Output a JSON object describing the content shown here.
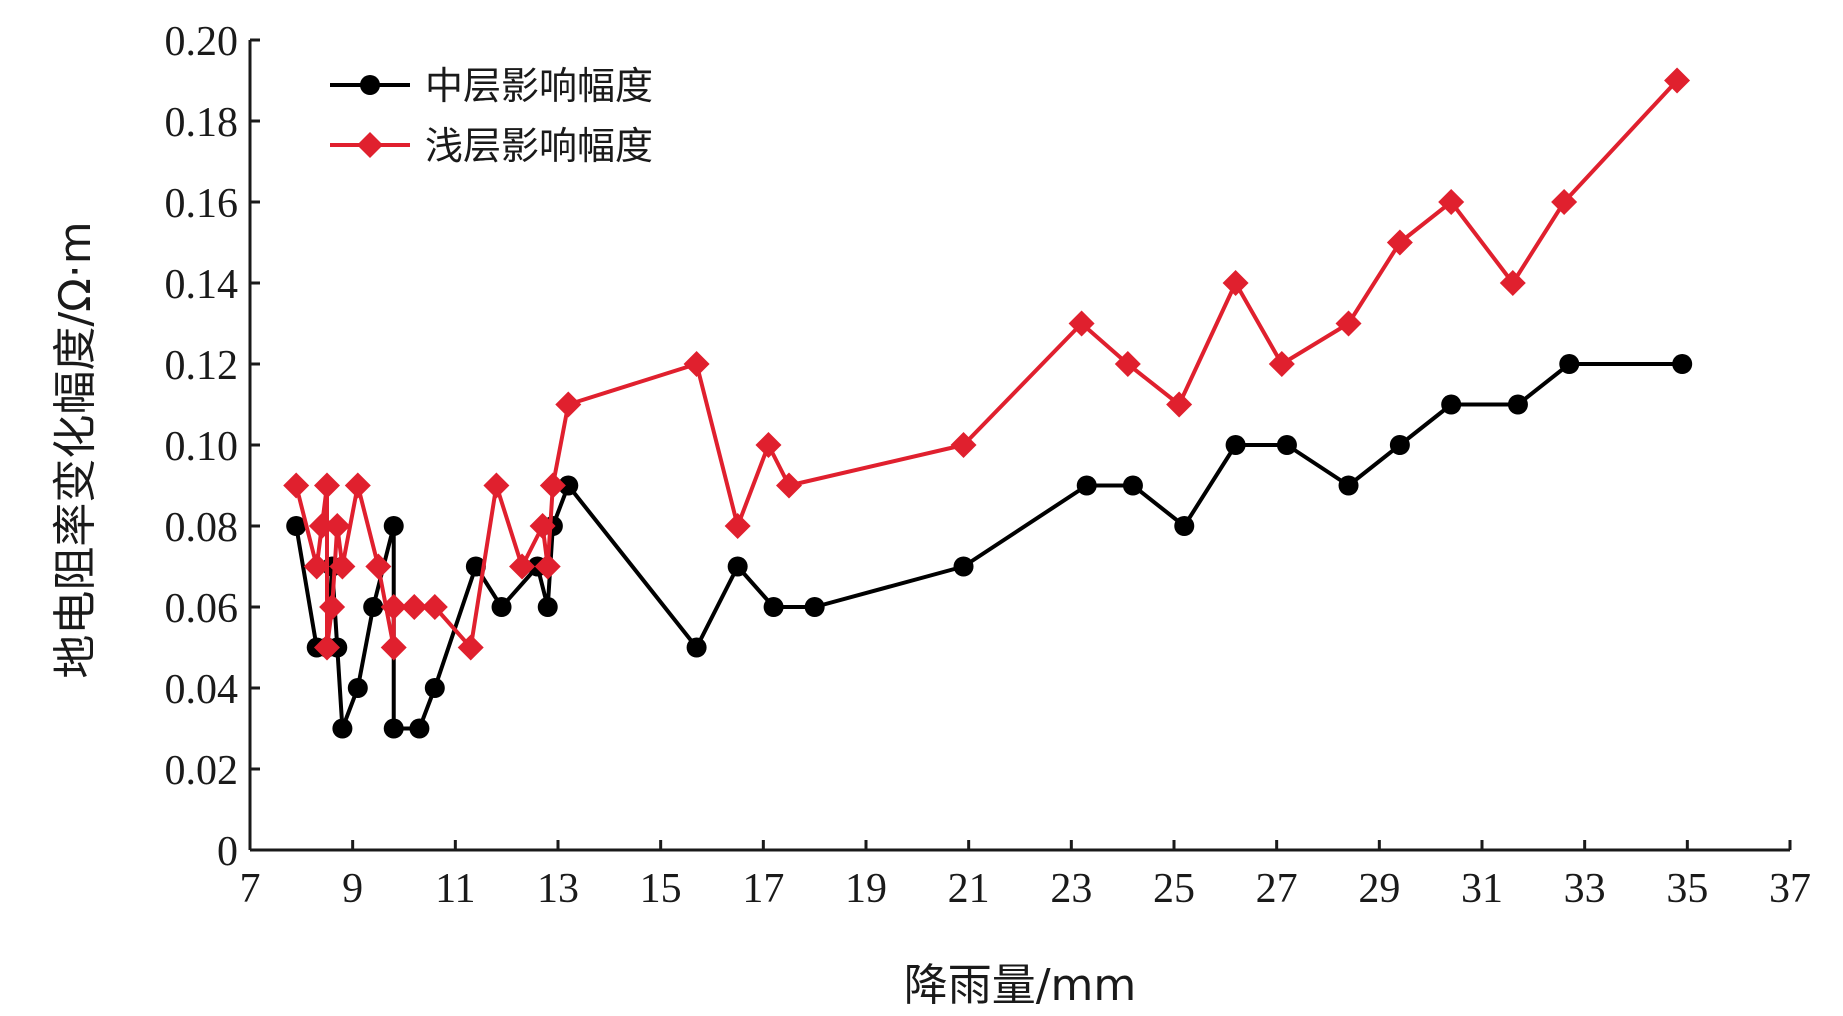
{
  "chart_data": {
    "type": "line",
    "title": "",
    "xlabel": "降雨量/mm",
    "ylabel": "地电阻率变化幅度/Ω·m",
    "xlim": [
      7,
      37
    ],
    "ylim": [
      0,
      0.2
    ],
    "x_ticks": [
      7,
      9,
      11,
      13,
      15,
      17,
      19,
      21,
      23,
      25,
      27,
      29,
      31,
      33,
      35,
      37
    ],
    "x_tick_labels": [
      "7",
      "9",
      "11",
      "13",
      "15",
      "17",
      "19",
      "21",
      "23",
      "25",
      "27",
      "29",
      "31",
      "33",
      "35",
      "37"
    ],
    "y_ticks": [
      0,
      0.02,
      0.04,
      0.06,
      0.08,
      0.1,
      0.12,
      0.14,
      0.16,
      0.18,
      0.2
    ],
    "y_tick_labels": [
      "0",
      "0.02",
      "0.04",
      "0.06",
      "0.08",
      "0.10",
      "0.12",
      "0.14",
      "0.16",
      "0.18",
      "0.20"
    ],
    "grid": false,
    "legend_position": "top-left",
    "series": [
      {
        "name": "中层影响幅度",
        "color": "#000000",
        "marker": "circle",
        "points": [
          [
            7.9,
            0.08
          ],
          [
            8.3,
            0.05
          ],
          [
            8.5,
            0.05
          ],
          [
            8.6,
            0.07
          ],
          [
            8.7,
            0.05
          ],
          [
            8.8,
            0.03
          ],
          [
            9.1,
            0.04
          ],
          [
            9.4,
            0.06
          ],
          [
            9.8,
            0.08
          ],
          [
            9.8,
            0.03
          ],
          [
            10.3,
            0.03
          ],
          [
            10.6,
            0.04
          ],
          [
            11.4,
            0.07
          ],
          [
            11.9,
            0.06
          ],
          [
            12.6,
            0.07
          ],
          [
            12.8,
            0.06
          ],
          [
            12.9,
            0.08
          ],
          [
            13.2,
            0.09
          ],
          [
            15.7,
            0.05
          ],
          [
            16.5,
            0.07
          ],
          [
            17.2,
            0.06
          ],
          [
            18.0,
            0.06
          ],
          [
            20.9,
            0.07
          ],
          [
            23.3,
            0.09
          ],
          [
            24.2,
            0.09
          ],
          [
            25.2,
            0.08
          ],
          [
            26.2,
            0.1
          ],
          [
            27.2,
            0.1
          ],
          [
            28.4,
            0.09
          ],
          [
            29.4,
            0.1
          ],
          [
            30.4,
            0.11
          ],
          [
            31.7,
            0.11
          ],
          [
            32.7,
            0.12
          ],
          [
            34.9,
            0.12
          ]
        ]
      },
      {
        "name": "浅层影响幅度",
        "color": "#e0202e",
        "marker": "diamond",
        "points": [
          [
            7.9,
            0.09
          ],
          [
            8.3,
            0.07
          ],
          [
            8.4,
            0.08
          ],
          [
            8.5,
            0.09
          ],
          [
            8.5,
            0.05
          ],
          [
            8.6,
            0.06
          ],
          [
            8.7,
            0.08
          ],
          [
            8.8,
            0.07
          ],
          [
            9.1,
            0.09
          ],
          [
            9.5,
            0.07
          ],
          [
            9.8,
            0.05
          ],
          [
            9.8,
            0.06
          ],
          [
            10.2,
            0.06
          ],
          [
            10.6,
            0.06
          ],
          [
            11.3,
            0.05
          ],
          [
            11.8,
            0.09
          ],
          [
            12.3,
            0.07
          ],
          [
            12.7,
            0.08
          ],
          [
            12.8,
            0.07
          ],
          [
            12.9,
            0.09
          ],
          [
            13.2,
            0.11
          ],
          [
            15.7,
            0.12
          ],
          [
            16.5,
            0.08
          ],
          [
            17.1,
            0.1
          ],
          [
            17.5,
            0.09
          ],
          [
            20.9,
            0.1
          ],
          [
            23.2,
            0.13
          ],
          [
            24.1,
            0.12
          ],
          [
            25.1,
            0.11
          ],
          [
            26.2,
            0.14
          ],
          [
            27.1,
            0.12
          ],
          [
            28.4,
            0.13
          ],
          [
            29.4,
            0.15
          ],
          [
            30.4,
            0.16
          ],
          [
            31.6,
            0.14
          ],
          [
            32.6,
            0.16
          ],
          [
            34.8,
            0.19
          ]
        ]
      }
    ]
  }
}
